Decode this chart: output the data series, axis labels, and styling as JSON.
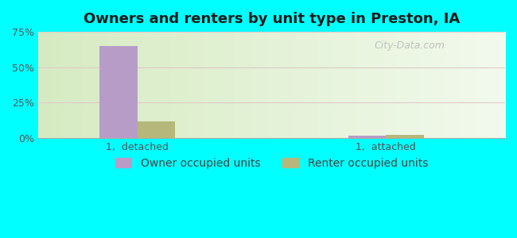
{
  "title": "Owners and renters by unit type in Preston, IA",
  "categories": [
    "1,  detached",
    "1,  attached"
  ],
  "owner_values": [
    65.0,
    1.5
  ],
  "renter_values": [
    12.0,
    2.5
  ],
  "owner_color": "#b89cc8",
  "renter_color": "#b5b87a",
  "ylim": [
    0,
    75
  ],
  "yticks": [
    0,
    25,
    50,
    75
  ],
  "yticklabels": [
    "0%",
    "25%",
    "50%",
    "75%"
  ],
  "bar_width": 0.38,
  "legend_owner": "Owner occupied units",
  "legend_renter": "Renter occupied units",
  "watermark": "City-Data.com",
  "title_fontsize": 13,
  "tick_fontsize": 9,
  "legend_fontsize": 10,
  "figure_bg": "#00ffff",
  "grid_color": "#e8c8c8",
  "spine_color": "#cccccc"
}
